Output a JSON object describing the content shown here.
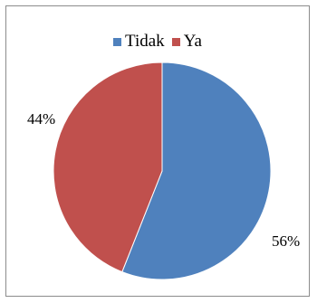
{
  "chart_data": {
    "type": "pie",
    "categories": [
      "Tidak",
      "Ya"
    ],
    "values": [
      56,
      44
    ],
    "data_labels": [
      "56%",
      "44%"
    ],
    "colors": [
      "#4f81bd",
      "#c0504d"
    ],
    "legend_position": "top",
    "title": ""
  },
  "legend": {
    "items": [
      {
        "label": "Tidak",
        "color": "#4f81bd"
      },
      {
        "label": "Ya",
        "color": "#c0504d"
      }
    ]
  }
}
